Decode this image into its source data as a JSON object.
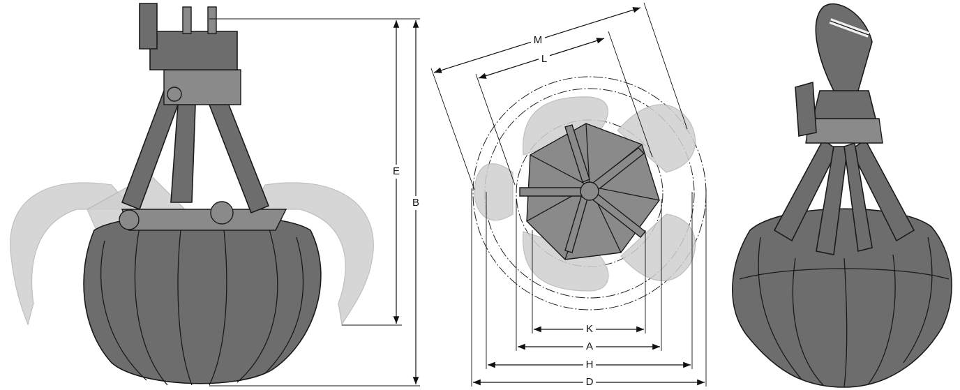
{
  "dimension_labels": [
    "E",
    "B",
    "M",
    "L",
    "K",
    "A",
    "H",
    "D"
  ]
}
